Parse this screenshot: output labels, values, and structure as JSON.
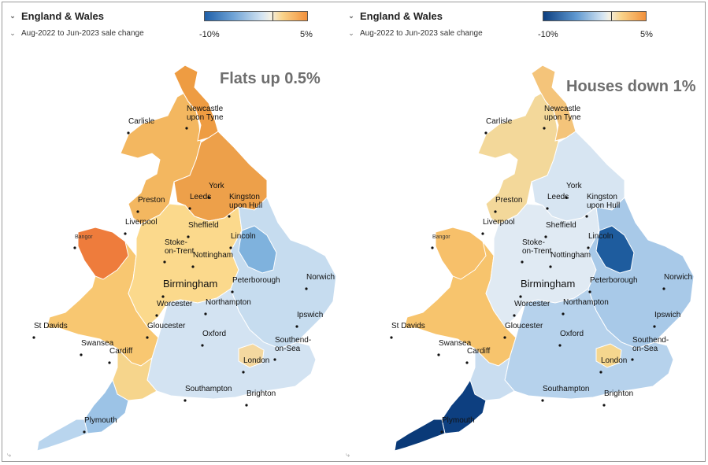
{
  "panels": [
    {
      "region": "England & Wales",
      "period": "Aug-2022 to Jun-2023 sale change",
      "legend_min": "-10%",
      "legend_max": "5%",
      "title": "Flats up 0.5%",
      "colors": {
        "north": "#f3b760",
        "northeast": "#ee9c42",
        "yorkshire": "#eda04a",
        "wales": "#f8c771",
        "wales_nw": "#ee7c3c",
        "midlands": "#fbd98c",
        "east": "#c6dcef",
        "east_lincoln": "#7fb2dd",
        "south": "#d3e3f2",
        "southwest": "#f6d58c",
        "devon": "#9cc3e6",
        "cornwall": "#b9d5ee",
        "london": "#f4d8a0"
      }
    },
    {
      "region": "England & Wales",
      "period": "Aug-2022 to Jun-2023 sale change",
      "legend_min": "-10%",
      "legend_max": "5%",
      "title": "Houses down 1%",
      "colors": {
        "north": "#f3d89a",
        "northeast": "#f4c47a",
        "yorkshire": "#d7e5f2",
        "wales": "#f7c46d",
        "wales_nw": "#f7c06a",
        "midlands": "#e0eaf3",
        "east": "#a8c9e8",
        "east_lincoln": "#1e5c9e",
        "south": "#b6d2ec",
        "southwest": "#c9ddf0",
        "devon": "#0d3f80",
        "cornwall": "#0a3a78",
        "london": "#f5d68e"
      }
    }
  ],
  "cities": [
    {
      "name": "Newcastle upon Tyne",
      "line1": "Newcastle",
      "line2": "upon Tyne"
    },
    {
      "name": "Carlisle",
      "line1": "Carlisle",
      "line2": ""
    },
    {
      "name": "York",
      "line1": "York",
      "line2": ""
    },
    {
      "name": "Leeds",
      "line1": "Leeds",
      "line2": ""
    },
    {
      "name": "Kingston upon Hull",
      "line1": "Kingston",
      "line2": "upon Hull"
    },
    {
      "name": "Preston",
      "line1": "Preston",
      "line2": ""
    },
    {
      "name": "Liverpool",
      "line1": "Liverpool",
      "line2": ""
    },
    {
      "name": "Sheffield",
      "line1": "Sheffield",
      "line2": ""
    },
    {
      "name": "Lincoln",
      "line1": "Lincoln",
      "line2": ""
    },
    {
      "name": "Bangor",
      "line1": "Bangor",
      "line2": ""
    },
    {
      "name": "Stoke-on-Trent",
      "line1": "Stoke-",
      "line2": "on-Trent"
    },
    {
      "name": "Nottingham",
      "line1": "Nottingham",
      "line2": ""
    },
    {
      "name": "Norwich",
      "line1": "Norwich",
      "line2": ""
    },
    {
      "name": "Birmingham",
      "line1": "Birmingham",
      "line2": ""
    },
    {
      "name": "Peterborough",
      "line1": "Peterborough",
      "line2": ""
    },
    {
      "name": "Worcester",
      "line1": "Worcester",
      "line2": ""
    },
    {
      "name": "Northampton",
      "line1": "Northampton",
      "line2": ""
    },
    {
      "name": "St Davids",
      "line1": "St Davids",
      "line2": ""
    },
    {
      "name": "Ipswich",
      "line1": "Ipswich",
      "line2": ""
    },
    {
      "name": "Gloucester",
      "line1": "Gloucester",
      "line2": ""
    },
    {
      "name": "Oxford",
      "line1": "Oxford",
      "line2": ""
    },
    {
      "name": "Swansea",
      "line1": "Swansea",
      "line2": ""
    },
    {
      "name": "Southend-on-Sea",
      "line1": "Southend-",
      "line2": "on-Sea"
    },
    {
      "name": "Cardiff",
      "line1": "Cardiff",
      "line2": ""
    },
    {
      "name": "London",
      "line1": "London",
      "line2": ""
    },
    {
      "name": "Southampton",
      "line1": "Southampton",
      "line2": ""
    },
    {
      "name": "Brighton",
      "line1": "Brighton",
      "line2": ""
    },
    {
      "name": "Plymouth",
      "line1": "Plymouth",
      "line2": ""
    }
  ]
}
